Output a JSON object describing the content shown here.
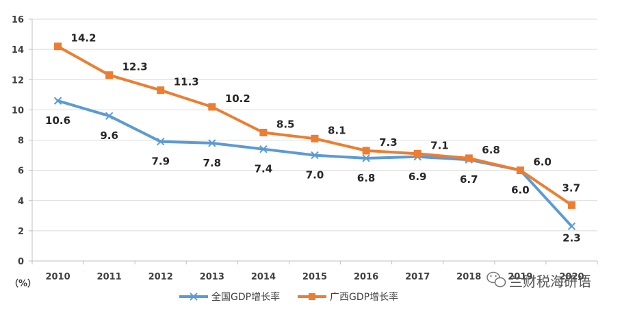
{
  "chart_data": {
    "type": "line",
    "title": "",
    "xlabel": "",
    "ylabel": "",
    "y_unit_label": "（%）",
    "categories": [
      "2010",
      "2011",
      "2012",
      "2013",
      "2014",
      "2015",
      "2016",
      "2017",
      "2018",
      "2019",
      "2020"
    ],
    "ylim": [
      0,
      16
    ],
    "yticks": [
      0,
      2,
      4,
      6,
      8,
      10,
      12,
      14,
      16
    ],
    "grid": true,
    "legend_position": "bottom",
    "series": [
      {
        "name": "全国GDP增长率",
        "values": [
          10.6,
          9.6,
          7.9,
          7.8,
          7.4,
          7.0,
          6.8,
          6.9,
          6.7,
          6.0,
          2.3
        ],
        "labels": [
          "10.6",
          "9.6",
          "7.9",
          "7.8",
          "7.4",
          "7.0",
          "6.8",
          "6.9",
          "6.7",
          "6.0",
          "2.3"
        ],
        "color": "#5B9BD5",
        "marker": "x"
      },
      {
        "name": "广西GDP增长率",
        "values": [
          14.2,
          12.3,
          11.3,
          10.2,
          8.5,
          8.1,
          7.3,
          7.1,
          6.8,
          6.0,
          3.7
        ],
        "labels": [
          "14.2",
          "12.3",
          "11.3",
          "10.2",
          "8.5",
          "8.1",
          "7.3",
          "7.1",
          "6.8",
          "6.0",
          "3.7"
        ],
        "color": "#ED7D31",
        "marker": "square"
      }
    ]
  },
  "watermark": {
    "text": "兰财税海研语",
    "icon": "wechat-icon"
  }
}
